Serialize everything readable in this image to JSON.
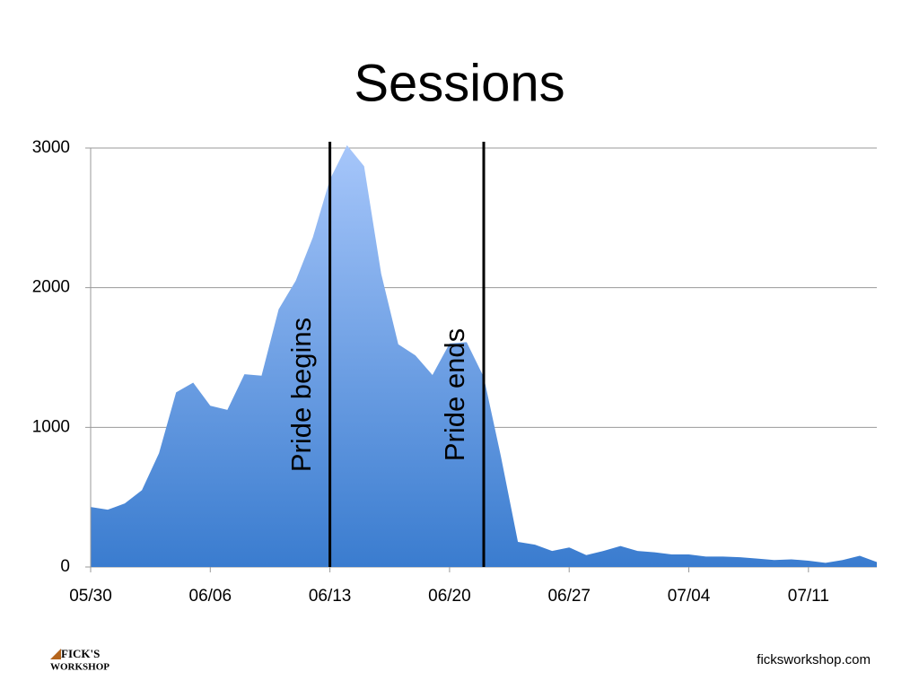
{
  "chart_data": {
    "type": "area",
    "title": "Sessions",
    "categories": [
      "05/30",
      null,
      null,
      null,
      null,
      null,
      null,
      "06/06",
      null,
      null,
      null,
      null,
      null,
      null,
      "06/13",
      null,
      null,
      null,
      null,
      null,
      null,
      "06/20",
      null,
      null,
      null,
      null,
      null,
      null,
      "06/27",
      null,
      null,
      null,
      null,
      null,
      null,
      "07/04",
      null,
      null,
      null,
      null,
      null,
      null,
      "07/11",
      null,
      null,
      null,
      null
    ],
    "values": [
      430,
      410,
      455,
      550,
      815,
      1250,
      1320,
      1155,
      1125,
      1380,
      1370,
      1845,
      2050,
      2360,
      2775,
      3020,
      2870,
      2100,
      1595,
      1515,
      1375,
      1600,
      1610,
      1360,
      795,
      180,
      160,
      115,
      140,
      85,
      115,
      150,
      115,
      105,
      90,
      90,
      75,
      75,
      70,
      60,
      50,
      55,
      45,
      30,
      50,
      80,
      35
    ],
    "color": "#3d80d2",
    "ylim": [
      0,
      3000
    ],
    "yticks": [
      0,
      1000,
      2000,
      3000
    ],
    "grid": true,
    "annotations": [
      {
        "text": "Pride begins",
        "at": 14
      },
      {
        "text": "Pride ends",
        "at": 23
      }
    ]
  },
  "footer": {
    "logo": [
      "FICK'S",
      "WORKSHOP"
    ],
    "site": "ficksworkshop.com"
  }
}
